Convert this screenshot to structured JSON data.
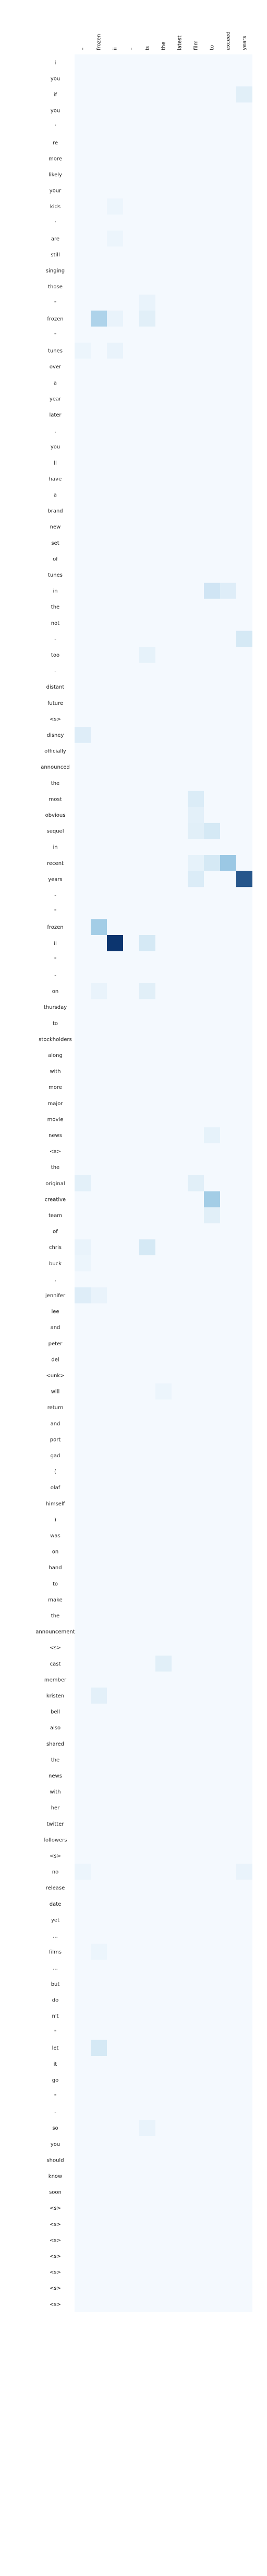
{
  "chart_data": {
    "type": "heatmap",
    "title": "",
    "xlabel": "",
    "ylabel": "",
    "colormap": "Blues",
    "color_low": "#f7fbff",
    "color_high": "#08306b",
    "value_range": [
      0,
      1
    ],
    "legend": "none",
    "grid": false,
    "columns": [
      "–",
      "frozen",
      "ii",
      "–",
      "is",
      "the",
      "latest",
      "film",
      "to",
      "exceed",
      "years"
    ],
    "rows": [
      "i",
      "you",
      "if",
      "you",
      "'",
      "re",
      "more",
      "likely",
      "your",
      "kids",
      "'",
      "are",
      "still",
      "singing",
      "those",
      "\"",
      "frozen",
      "\"",
      "tunes",
      "over",
      "a",
      "year",
      "later",
      ",",
      "you",
      "ll",
      "have",
      "a",
      "brand",
      "new",
      "set",
      "of",
      "tunes",
      "in",
      "the",
      "not",
      "-",
      "too",
      "-",
      "distant",
      "future",
      "<s>",
      "disney",
      "officially",
      "announced",
      "the",
      "most",
      "obvious",
      "sequel",
      "in",
      "recent",
      "years",
      "-",
      "\"",
      "frozen",
      "ii",
      "\"",
      "-",
      "on",
      "thursday",
      "to",
      "stockholders",
      "along",
      "with",
      "more",
      "major",
      "movie",
      "news",
      "<s>",
      "the",
      "original",
      "creative",
      "team",
      "of",
      "chris",
      "buck",
      ",",
      "jennifer",
      "lee",
      "and",
      "peter",
      "del",
      "<unk>",
      "will",
      "return",
      "and",
      "port",
      "gad",
      "(",
      "olaf",
      "himself",
      ")",
      "was",
      "on",
      "hand",
      "to",
      "make",
      "the",
      "announcement",
      "<s>",
      "cast",
      "member",
      "kristen",
      "bell",
      "also",
      "shared",
      "the",
      "news",
      "with",
      "her",
      "twitter",
      "followers",
      "<s>",
      "no",
      "release",
      "date",
      "yet",
      "...",
      "films",
      "...",
      "but",
      "do",
      "n't",
      "\"",
      "let",
      "it",
      "go",
      "\"",
      "-",
      "so",
      "you",
      "should",
      "know",
      "soon",
      "<s>",
      "<s>",
      "<s>",
      "<s>",
      "<s>",
      "<s>",
      "<s>"
    ],
    "highlights": [
      {
        "row": "if",
        "column": "years",
        "value": 0.08
      },
      {
        "row": "are",
        "column": "ii",
        "value": 0.04
      },
      {
        "row": "kids",
        "column": "ii",
        "value": 0.04
      },
      {
        "row": "frozen",
        "column": "frozen",
        "value": 0.26
      },
      {
        "row": "frozen",
        "column": "ii",
        "value": 0.05
      },
      {
        "row": "tunes",
        "column": "ii",
        "value": 0.05
      },
      {
        "row": "tunes",
        "column": "–",
        "value": 0.04
      },
      {
        "row": "\"",
        "column": "is",
        "value": 0.05
      },
      {
        "row": "too",
        "column": "is",
        "value": 0.06
      },
      {
        "row": "disney",
        "column": "–",
        "value": 0.09
      },
      {
        "row": "most",
        "column": "film",
        "value": 0.1
      },
      {
        "row": "obvious",
        "column": "film",
        "value": 0.07
      },
      {
        "row": "sequel",
        "column": "film",
        "value": 0.08
      },
      {
        "row": "sequel",
        "column": "to",
        "value": 0.12
      },
      {
        "row": "in",
        "column": "to",
        "value": 0.14
      },
      {
        "row": "in",
        "column": "exceed",
        "value": 0.09
      },
      {
        "row": "recent",
        "column": "exceed",
        "value": 0.33
      },
      {
        "row": "recent",
        "column": "to",
        "value": 0.12
      },
      {
        "row": "recent",
        "column": "film",
        "value": 0.06
      },
      {
        "row": "years",
        "column": "years",
        "value": 0.85
      },
      {
        "row": "years",
        "column": "film",
        "value": 0.1
      },
      {
        "row": "-",
        "column": "years",
        "value": 0.12
      },
      {
        "row": "frozen",
        "column": "frozen",
        "value": 0.3
      },
      {
        "row": "frozen",
        "column": "is",
        "value": 0.08
      },
      {
        "row": "ii",
        "column": "ii",
        "value": 0.98
      },
      {
        "row": "ii",
        "column": "is",
        "value": 0.12
      },
      {
        "row": "on",
        "column": "frozen",
        "value": 0.05
      },
      {
        "row": "news",
        "column": "to",
        "value": 0.06
      },
      {
        "row": "original",
        "column": "–",
        "value": 0.07
      },
      {
        "row": "original",
        "column": "film",
        "value": 0.08
      },
      {
        "row": "creative",
        "column": "to",
        "value": 0.3
      },
      {
        "row": "team",
        "column": "to",
        "value": 0.08
      },
      {
        "row": "chris",
        "column": "is",
        "value": 0.12
      },
      {
        "row": "chris",
        "column": "–",
        "value": 0.05
      },
      {
        "row": "buck",
        "column": "–",
        "value": 0.04
      },
      {
        "row": "jennifer",
        "column": "–",
        "value": 0.09
      },
      {
        "row": "jennifer",
        "column": "frozen",
        "value": 0.05
      },
      {
        "row": "will",
        "column": "the",
        "value": 0.04
      },
      {
        "row": "on",
        "column": "is",
        "value": 0.08
      },
      {
        "row": "cast",
        "column": "the",
        "value": 0.08
      },
      {
        "row": "kristen",
        "column": "frozen",
        "value": 0.07
      },
      {
        "row": "no",
        "column": "years",
        "value": 0.05
      },
      {
        "row": "no",
        "column": "–",
        "value": 0.04
      },
      {
        "row": "films",
        "column": "frozen",
        "value": 0.04
      },
      {
        "row": "let",
        "column": "frozen",
        "value": 0.12
      },
      {
        "row": "so",
        "column": "is",
        "value": 0.05
      }
    ]
  }
}
